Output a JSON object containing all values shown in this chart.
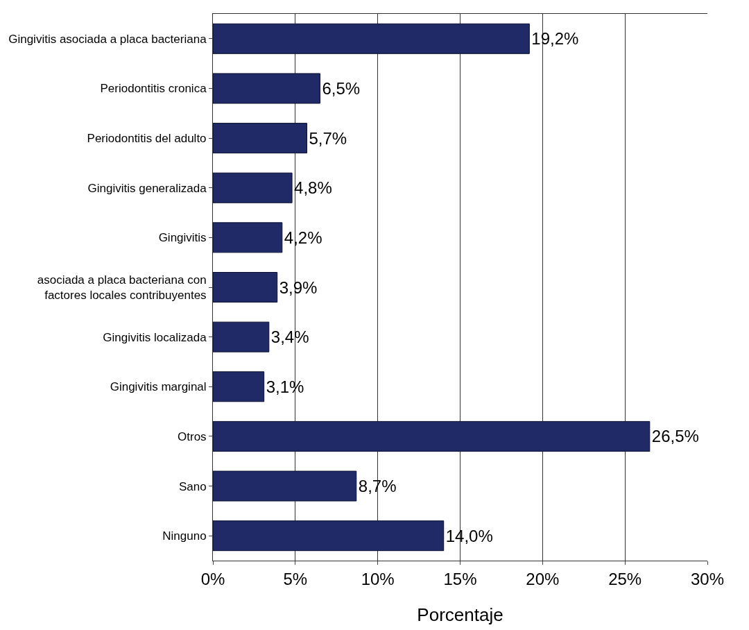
{
  "chart_data": {
    "type": "bar",
    "orientation": "horizontal",
    "xlabel": "Porcentaje",
    "categories": [
      "Gingivitis asociada a placa bacteriana",
      "Periodontitis cronica",
      "Periodontitis del adulto",
      "Gingivitis generalizada",
      "Gingivitis",
      "asociada a placa bacteriana con factores locales contribuyentes",
      "Gingivitis localizada",
      "Gingivitis marginal",
      "Otros",
      "Sano",
      "Ninguno"
    ],
    "values": [
      19.2,
      6.5,
      5.7,
      4.8,
      4.2,
      3.9,
      3.4,
      3.1,
      26.5,
      8.7,
      14.0
    ],
    "value_labels": [
      "19,2%",
      "6,5%",
      "5,7%",
      "4,8%",
      "4,2%",
      "3,9%",
      "3,4%",
      "3,1%",
      "26,5%",
      "8,7%",
      "14,0%"
    ],
    "color": "#1f2a66",
    "xlim": [
      0,
      30
    ],
    "xticks": [
      {
        "value": 0,
        "label": "0%"
      },
      {
        "value": 5,
        "label": "5%"
      },
      {
        "value": 10,
        "label": "10%"
      },
      {
        "value": 15,
        "label": "15%"
      },
      {
        "value": 20,
        "label": "20%"
      },
      {
        "value": 25,
        "label": "25%"
      },
      {
        "value": 30,
        "label": "30%"
      }
    ],
    "grid": "x"
  }
}
